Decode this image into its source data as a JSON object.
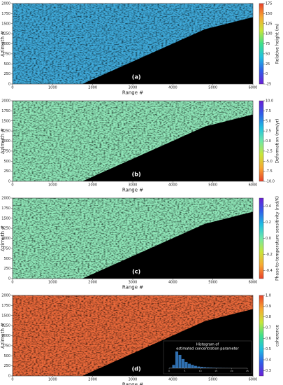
{
  "chart_data": [
    {
      "type": "heatmap",
      "title": "(a)",
      "xlabel": "Range #",
      "ylabel": "Azimuth #",
      "color": "#3fa9d9",
      "xlim": [
        0,
        6000
      ],
      "xticks": [
        0,
        1000,
        2000,
        3000,
        4000,
        5000,
        6000
      ],
      "ylim": [
        0,
        2000
      ],
      "yticks": [
        0,
        250,
        500,
        750,
        1000,
        1250,
        1500,
        1750,
        2000
      ],
      "colorbar": {
        "label": "Relative height (m)",
        "lim": [
          -25,
          175
        ],
        "ticks": [
          -25,
          0,
          25,
          50,
          75,
          100,
          125,
          150,
          175
        ],
        "colors": [
          "#6a1fd6",
          "#2f5fe8",
          "#1fc0e0",
          "#3fe08a",
          "#c8e63a",
          "#f7a832",
          "#e8402a"
        ]
      }
    },
    {
      "type": "heatmap",
      "title": "(b)",
      "xlabel": "Range #",
      "ylabel": "Azimuth #",
      "color": "#8fe6b8",
      "xlim": [
        0,
        6000
      ],
      "xticks": [
        0,
        1000,
        2000,
        3000,
        4000,
        5000,
        6000
      ],
      "ylim": [
        0,
        2000
      ],
      "yticks": [
        0,
        250,
        500,
        750,
        1000,
        1250,
        1500,
        1750,
        2000
      ],
      "colorbar": {
        "label": "Deformation (mm/yr)",
        "lim": [
          -10,
          10
        ],
        "ticks": [
          {
            "value": -10,
            "label": "-10.0"
          },
          -7.5,
          {
            "value": -5,
            "label": "-5.0"
          },
          -2.5,
          {
            "value": 0,
            "label": "0.0"
          },
          2.5,
          {
            "value": 5,
            "label": "5.0"
          },
          7.5,
          {
            "value": 10,
            "label": "10.0"
          }
        ],
        "colors": [
          "#e8402a",
          "#f7a832",
          "#c8e63a",
          "#6fe8a8",
          "#1fc0e0",
          "#2f5fe8",
          "#6a1fd6"
        ]
      }
    },
    {
      "type": "heatmap",
      "title": "(c)",
      "xlabel": "Range #",
      "ylabel": "Azimuth #",
      "color": "#8fe6b8",
      "xlim": [
        0,
        6000
      ],
      "xticks": [
        0,
        1000,
        2000,
        3000,
        4000,
        5000,
        6000
      ],
      "ylim": [
        0,
        2000
      ],
      "yticks": [
        0,
        250,
        500,
        750,
        1000,
        1250,
        1500,
        1750,
        2000
      ],
      "colorbar": {
        "label": "Phase-to-temperature sensitivity (rad/K)",
        "lim": [
          -0.5,
          0.5
        ],
        "ticks": [
          -0.4,
          -0.2,
          {
            "value": 0,
            "label": "0.0"
          },
          0.2,
          0.4
        ],
        "colors": [
          "#e8402a",
          "#f7a832",
          "#c8e63a",
          "#6fe8a8",
          "#1fc0e0",
          "#2f5fe8",
          "#6a1fd6"
        ]
      }
    },
    {
      "type": "heatmap",
      "title": "(d)",
      "xlabel": "Range #",
      "ylabel": "Azimuth #",
      "color": "#e8683a",
      "xlim": [
        0,
        6000
      ],
      "xticks": [
        0,
        1000,
        2000,
        3000,
        4000,
        5000,
        6000
      ],
      "ylim": [
        0,
        2000
      ],
      "yticks": [
        0,
        250,
        500,
        750,
        1000,
        1250,
        1500,
        1750,
        2000
      ],
      "colorbar": {
        "label": "coherence",
        "lim": [
          0.25,
          1
        ],
        "ticks": [
          0.3,
          0.4,
          0.5,
          0.6,
          0.7,
          0.8,
          0.9,
          {
            "value": 1,
            "label": "1.0"
          }
        ],
        "colors": [
          "#6a1fd6",
          "#2f5fe8",
          "#1fc0e0",
          "#3fe08a",
          "#c8e63a",
          "#f7a832",
          "#e8402a"
        ]
      },
      "inset": {
        "type": "histogram",
        "title": [
          "Histogram of",
          "estimated concentration parameter"
        ],
        "color": "#2f6fb0",
        "bins": [
          0,
          1,
          2,
          3,
          4,
          5,
          6,
          7,
          8,
          9,
          10,
          11,
          12,
          13,
          14,
          15,
          16,
          17,
          18,
          19,
          20
        ],
        "counts": [
          0.2,
          2,
          10,
          8,
          5.5,
          3.8,
          2.7,
          2,
          1.4,
          1,
          0.8,
          0.6,
          0.45,
          0.35,
          0.25,
          0.2,
          0.15,
          0.1,
          0.08,
          0.05
        ],
        "xlim": [
          0,
          25
        ],
        "ylim": [
          0,
          10.5
        ],
        "xticks": [
          0,
          5,
          10,
          15,
          20,
          25
        ]
      }
    }
  ]
}
